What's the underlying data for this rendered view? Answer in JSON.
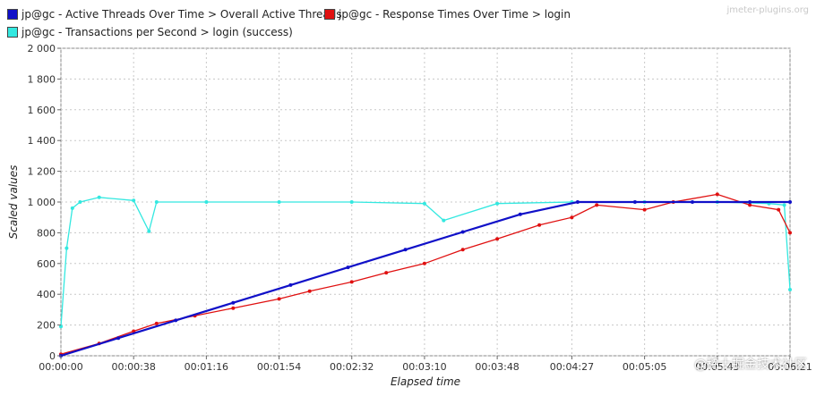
{
  "watermark_top": "jmeter-plugins.org",
  "watermark_bottom": "@稀土掘金技术社区",
  "legend": [
    {
      "label": "jp@gc - Active Threads Over Time > Overall Active Threads",
      "color": "#1010c8"
    },
    {
      "label": "jp@gc - Response Times Over Time > login",
      "color": "#e01010"
    },
    {
      "label": "jp@gc - Transactions per Second > login (success)",
      "color": "#33e8e0"
    }
  ],
  "chart_data": {
    "type": "line",
    "title": "",
    "xlabel": "Elapsed time",
    "ylabel": "Scaled values",
    "ylim": [
      0,
      2000
    ],
    "yticks": [
      0,
      200,
      400,
      600,
      800,
      1000,
      1200,
      1400,
      1600,
      1800,
      2000
    ],
    "ytick_labels": [
      "0",
      "200",
      "400",
      "600",
      "800",
      "1 000",
      "1 200",
      "1 400",
      "1 600",
      "1 800",
      "2 000"
    ],
    "xlim": [
      "00:00:00",
      "00:06:21"
    ],
    "xtick_labels": [
      "00:00:00",
      "00:00:38",
      "00:01:16",
      "00:01:54",
      "00:02:32",
      "00:03:10",
      "00:03:48",
      "00:04:27",
      "00:05:05",
      "00:05:43",
      "00:06:21"
    ],
    "grid": true,
    "legend_position": "top-left",
    "series": [
      {
        "name": "jp@gc - Active Threads Over Time > Overall Active Threads",
        "color": "#1010c8",
        "x": [
          "00:00:00",
          "00:00:30",
          "00:01:00",
          "00:01:30",
          "00:02:00",
          "00:02:30",
          "00:03:00",
          "00:03:30",
          "00:04:00",
          "00:04:30",
          "00:05:00",
          "00:05:30",
          "00:06:00",
          "00:06:21"
        ],
        "y": [
          0,
          115,
          230,
          345,
          460,
          575,
          690,
          805,
          920,
          1000,
          1000,
          1000,
          1000,
          1000
        ]
      },
      {
        "name": "jp@gc - Response Times Over Time > login",
        "color": "#e01010",
        "x": [
          "00:00:00",
          "00:00:20",
          "00:00:38",
          "00:00:50",
          "00:01:10",
          "00:01:30",
          "00:01:54",
          "00:02:10",
          "00:02:32",
          "00:02:50",
          "00:03:10",
          "00:03:30",
          "00:03:48",
          "00:04:10",
          "00:04:27",
          "00:04:40",
          "00:05:05",
          "00:05:20",
          "00:05:43",
          "00:06:00",
          "00:06:15",
          "00:06:21"
        ],
        "y": [
          10,
          80,
          160,
          210,
          260,
          310,
          370,
          420,
          480,
          540,
          600,
          690,
          760,
          850,
          900,
          980,
          950,
          1000,
          1050,
          980,
          950,
          800
        ]
      },
      {
        "name": "jp@gc - Transactions per Second > login (success)",
        "color": "#33e8e0",
        "x": [
          "00:00:00",
          "00:00:03",
          "00:00:06",
          "00:00:10",
          "00:00:20",
          "00:00:38",
          "00:00:46",
          "00:00:50",
          "00:01:16",
          "00:01:54",
          "00:02:32",
          "00:03:10",
          "00:03:20",
          "00:03:48",
          "00:04:27",
          "00:05:05",
          "00:05:43",
          "00:06:10",
          "00:06:18",
          "00:06:21"
        ],
        "y": [
          190,
          700,
          960,
          1000,
          1030,
          1010,
          810,
          1000,
          1000,
          1000,
          1000,
          990,
          880,
          990,
          1000,
          1000,
          1000,
          990,
          980,
          430
        ]
      }
    ]
  }
}
